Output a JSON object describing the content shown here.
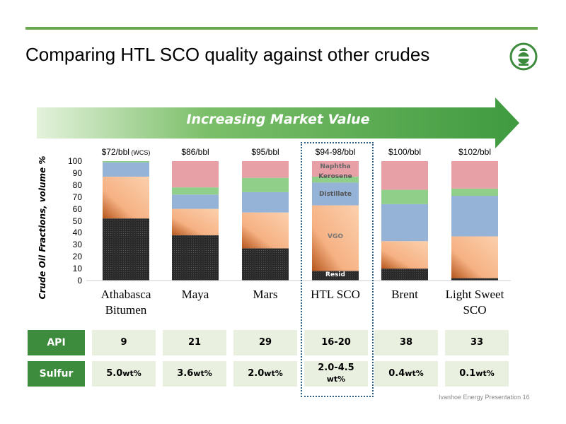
{
  "slide": {
    "title": "Comparing HTL SCO quality against other crudes",
    "arrow_text": "Increasing Market Value",
    "footer": "Ivanhoe Energy Presentation  16"
  },
  "colors": {
    "resid": "#2a2a2a",
    "vgo": "#f6b183",
    "distillate": "#95b3d7",
    "kerosene": "#8fcf8a",
    "naphtha": "#e6a0a6",
    "accent_green": "#3d8b3d",
    "table_cell": "#eaf0df"
  },
  "chart_data": {
    "type": "bar",
    "stacked": true,
    "ylabel": "Crude Oil Fractions, volume %",
    "ylim": [
      0,
      100
    ],
    "yticks": [
      "0",
      "10",
      "20",
      "30",
      "40",
      "50",
      "60",
      "70",
      "80",
      "90",
      "100"
    ],
    "categories": [
      "Athabasca Bitumen",
      "Maya",
      "Mars",
      "HTL SCO",
      "Brent",
      "Light Sweet SCO"
    ],
    "category_lines": [
      [
        "Athabasca",
        "Bitumen"
      ],
      [
        "Maya"
      ],
      [
        "Mars"
      ],
      [
        "HTL SCO"
      ],
      [
        "Brent"
      ],
      [
        "Light Sweet",
        "SCO"
      ]
    ],
    "prices": [
      {
        "main": "$72/bbl",
        "note": "(WCS)"
      },
      {
        "main": "$86/bbl",
        "note": ""
      },
      {
        "main": "$95/bbl",
        "note": ""
      },
      {
        "main": "$94-98/bbl",
        "note": ""
      },
      {
        "main": "$100/bbl",
        "note": ""
      },
      {
        "main": "$102/bbl",
        "note": ""
      }
    ],
    "series": [
      {
        "key": "resid",
        "values": [
          52,
          38,
          27,
          8,
          10,
          2
        ]
      },
      {
        "key": "vgo",
        "values": [
          35,
          22,
          30,
          55,
          23,
          35
        ]
      },
      {
        "key": "distillate",
        "values": [
          12,
          12,
          17,
          19,
          31,
          34
        ]
      },
      {
        "key": "kerosene",
        "values": [
          1,
          6,
          12,
          5,
          12,
          6
        ]
      },
      {
        "key": "naphtha",
        "values": [
          0,
          22,
          14,
          13,
          24,
          23
        ]
      }
    ],
    "segment_labels": [
      "Naphtha",
      "Kerosene",
      "Distillate",
      "VGO",
      "Resid"
    ],
    "highlight": "HTL SCO"
  },
  "table": {
    "rows": [
      {
        "label": "API",
        "values": [
          {
            "num": "9",
            "unit": ""
          },
          {
            "num": "21",
            "unit": ""
          },
          {
            "num": "29",
            "unit": ""
          },
          {
            "num": "16-20",
            "unit": ""
          },
          {
            "num": "38",
            "unit": ""
          },
          {
            "num": "33",
            "unit": ""
          }
        ]
      },
      {
        "label": "Sulfur",
        "values": [
          {
            "num": "5.0",
            "unit": "wt%"
          },
          {
            "num": "3.6",
            "unit": "wt%"
          },
          {
            "num": "2.0",
            "unit": "wt%"
          },
          {
            "num": "2.0-4.5",
            "unit": "wt%"
          },
          {
            "num": "0.4",
            "unit": "wt%"
          },
          {
            "num": "0.1",
            "unit": "wt%"
          }
        ]
      }
    ]
  }
}
